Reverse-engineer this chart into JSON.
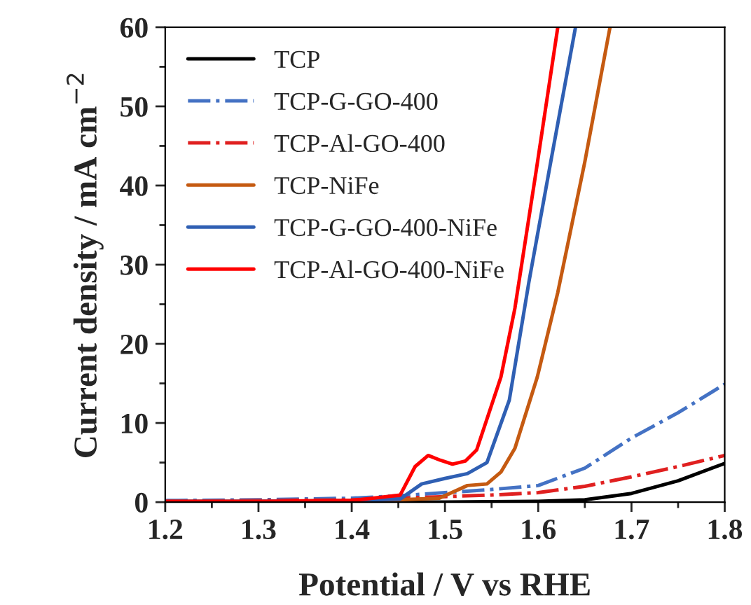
{
  "chart_data": {
    "type": "line",
    "xlabel": "Potential / V vs RHE",
    "ylabel": "Current density / mA cm$^{−2}$",
    "xlim": [
      1.2,
      1.8
    ],
    "xticks": [
      1.2,
      1.3,
      1.4,
      1.5,
      1.6,
      1.7,
      1.8
    ],
    "ylim": [
      0,
      60
    ],
    "yticks": [
      0,
      10,
      20,
      30,
      40,
      50,
      60
    ],
    "grid": false,
    "legend": "top left",
    "marker": "none",
    "series": [
      {
        "name": "TCP",
        "color": "#000000",
        "line_style": "solid",
        "x": [
          1.2,
          1.3,
          1.4,
          1.5,
          1.6,
          1.65,
          1.7,
          1.75,
          1.8
        ],
        "values": [
          0.0,
          0.0,
          0.0,
          0.0,
          0.1,
          0.3,
          1.1,
          2.7,
          4.9
        ]
      },
      {
        "name": "TCP-G-GO-400",
        "color": "#4472c4",
        "line_style": "dashdot",
        "x": [
          1.2,
          1.3,
          1.4,
          1.45,
          1.5,
          1.55,
          1.6,
          1.65,
          1.7,
          1.75,
          1.8
        ],
        "values": [
          0.2,
          0.3,
          0.5,
          0.8,
          1.2,
          1.6,
          2.1,
          4.3,
          8.1,
          11.3,
          14.9
        ]
      },
      {
        "name": "TCP-Al-GO-400",
        "color": "#e02020",
        "line_style": "dashdot",
        "x": [
          1.2,
          1.3,
          1.4,
          1.45,
          1.5,
          1.55,
          1.6,
          1.65,
          1.7,
          1.75,
          1.8
        ],
        "values": [
          0.1,
          0.2,
          0.3,
          0.5,
          0.7,
          0.9,
          1.2,
          2.0,
          3.2,
          4.5,
          5.9
        ]
      },
      {
        "name": "TCP-NiFe",
        "color": "#c55a11",
        "line_style": "solid",
        "x": [
          1.2,
          1.3,
          1.4,
          1.45,
          1.494,
          1.524,
          1.545,
          1.56,
          1.575,
          1.599,
          1.621,
          1.65,
          1.677
        ],
        "values": [
          0.1,
          0.1,
          0.2,
          0.3,
          0.5,
          2.1,
          2.3,
          3.8,
          6.8,
          15.8,
          26.5,
          43.0,
          60.0
        ]
      },
      {
        "name": "TCP-G-GO-400-NiFe",
        "color": "#2f5fb3",
        "line_style": "solid",
        "x": [
          1.2,
          1.3,
          1.4,
          1.452,
          1.475,
          1.5,
          1.524,
          1.545,
          1.569,
          1.59,
          1.615,
          1.64
        ],
        "values": [
          0.1,
          0.1,
          0.2,
          0.4,
          2.3,
          3.0,
          3.6,
          5.0,
          12.9,
          27.8,
          44.0,
          60.0
        ]
      },
      {
        "name": "TCP-Al-GO-400-NiFe",
        "color": "#ff0000",
        "line_style": "solid",
        "x": [
          1.2,
          1.3,
          1.4,
          1.452,
          1.468,
          1.482,
          1.495,
          1.508,
          1.522,
          1.534,
          1.56,
          1.575,
          1.598,
          1.621
        ],
        "values": [
          0.1,
          0.1,
          0.2,
          0.9,
          4.5,
          5.9,
          5.3,
          4.8,
          5.2,
          6.6,
          15.8,
          24.5,
          42.0,
          60.0
        ]
      }
    ]
  }
}
